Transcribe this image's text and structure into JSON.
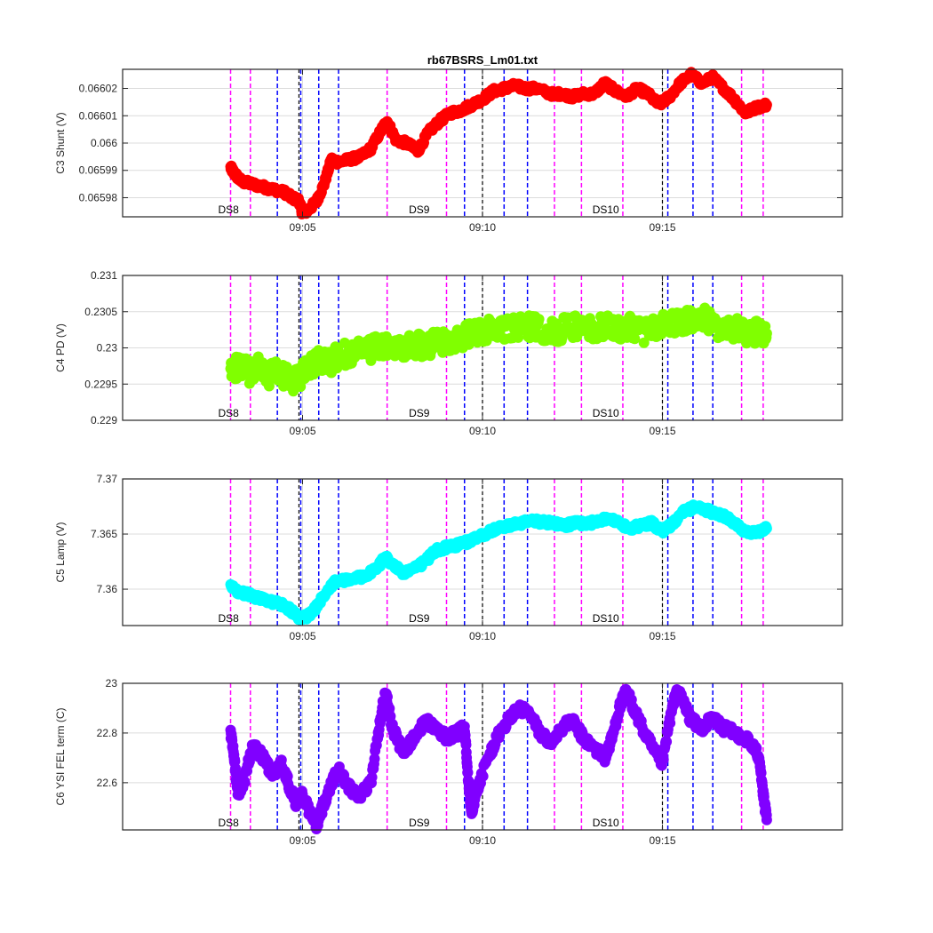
{
  "chart_data": [
    {
      "type": "scatter",
      "title": "rb67BSRS_Lm01.txt",
      "ylabel": "C3 Shunt (V)",
      "ylim": [
        0.065973,
        0.066027
      ],
      "yticks": [
        0.06598,
        0.06599,
        0.066,
        0.06601,
        0.06602
      ],
      "ytick_labels": [
        "0.06598",
        "0.06599",
        "0.066",
        "0.06601",
        "0.06602"
      ],
      "color": "#ff0000",
      "series_points": [
        [
          3.0,
          0.065991
        ],
        [
          3.1,
          0.065989
        ],
        [
          3.3,
          0.065986
        ],
        [
          3.6,
          0.065985
        ],
        [
          3.9,
          0.065984
        ],
        [
          4.2,
          0.065983
        ],
        [
          4.5,
          0.065982
        ],
        [
          4.7,
          0.06598
        ],
        [
          4.9,
          0.065979
        ],
        [
          5.0,
          0.065974
        ],
        [
          5.2,
          0.065976
        ],
        [
          5.4,
          0.065979
        ],
        [
          5.6,
          0.065985
        ],
        [
          5.8,
          0.065994
        ],
        [
          6.0,
          0.065993
        ],
        [
          6.3,
          0.065994
        ],
        [
          6.6,
          0.065995
        ],
        [
          6.9,
          0.065998
        ],
        [
          7.2,
          0.066005
        ],
        [
          7.35,
          0.066008
        ],
        [
          7.6,
          0.066001
        ],
        [
          7.9,
          0.066
        ],
        [
          8.2,
          0.065997
        ],
        [
          8.5,
          0.066004
        ],
        [
          8.8,
          0.066008
        ],
        [
          9.1,
          0.066011
        ],
        [
          9.4,
          0.066012
        ],
        [
          9.7,
          0.066014
        ],
        [
          10.0,
          0.066016
        ],
        [
          10.3,
          0.066019
        ],
        [
          10.6,
          0.06602
        ],
        [
          10.9,
          0.066021
        ],
        [
          11.2,
          0.06602
        ],
        [
          11.5,
          0.06602
        ],
        [
          11.9,
          0.066018
        ],
        [
          12.2,
          0.066018
        ],
        [
          12.5,
          0.066017
        ],
        [
          12.8,
          0.066018
        ],
        [
          13.1,
          0.066018
        ],
        [
          13.4,
          0.066022
        ],
        [
          13.7,
          0.066019
        ],
        [
          14.0,
          0.066017
        ],
        [
          14.3,
          0.06602
        ],
        [
          14.6,
          0.066018
        ],
        [
          14.9,
          0.066014
        ],
        [
          15.2,
          0.066017
        ],
        [
          15.5,
          0.066022
        ],
        [
          15.8,
          0.066025
        ],
        [
          16.1,
          0.066022
        ],
        [
          16.4,
          0.066024
        ],
        [
          16.7,
          0.06602
        ],
        [
          17.0,
          0.066016
        ],
        [
          17.3,
          0.066011
        ],
        [
          17.6,
          0.066013
        ],
        [
          17.9,
          0.066014
        ]
      ],
      "annotations": [
        "DS8",
        "DS9",
        "DS10"
      ]
    },
    {
      "type": "scatter",
      "title": "",
      "ylabel": "C4 PD (V)",
      "ylim": [
        0.229,
        0.231
      ],
      "yticks": [
        0.229,
        0.2295,
        0.23,
        0.2305,
        0.231
      ],
      "ytick_labels": [
        "0.229",
        "0.2295",
        "0.23",
        "0.2305",
        "0.231"
      ],
      "color": "#80ff00",
      "series_points": [
        [
          3.0,
          0.22965
        ],
        [
          3.2,
          0.22975
        ],
        [
          3.4,
          0.2297
        ],
        [
          3.6,
          0.22965
        ],
        [
          3.8,
          0.22975
        ],
        [
          4.0,
          0.2296
        ],
        [
          4.2,
          0.22968
        ],
        [
          4.4,
          0.22962
        ],
        [
          4.6,
          0.22958
        ],
        [
          4.8,
          0.22955
        ],
        [
          5.0,
          0.22965
        ],
        [
          5.2,
          0.22975
        ],
        [
          5.4,
          0.2298
        ],
        [
          5.6,
          0.22985
        ],
        [
          5.8,
          0.2298
        ],
        [
          6.0,
          0.2299
        ],
        [
          6.3,
          0.22992
        ],
        [
          6.6,
          0.22995
        ],
        [
          6.9,
          0.22998
        ],
        [
          7.2,
          0.23002
        ],
        [
          7.5,
          0.22998
        ],
        [
          7.8,
          0.23
        ],
        [
          8.1,
          0.23005
        ],
        [
          8.4,
          0.23002
        ],
        [
          8.7,
          0.23008
        ],
        [
          9.0,
          0.2301
        ],
        [
          9.3,
          0.23012
        ],
        [
          9.6,
          0.23018
        ],
        [
          9.9,
          0.2302
        ],
        [
          10.2,
          0.23025
        ],
        [
          10.5,
          0.23028
        ],
        [
          10.8,
          0.23025
        ],
        [
          11.1,
          0.2303
        ],
        [
          11.4,
          0.23028
        ],
        [
          11.7,
          0.23025
        ],
        [
          12.0,
          0.23022
        ],
        [
          12.3,
          0.23028
        ],
        [
          12.6,
          0.2303
        ],
        [
          12.9,
          0.23025
        ],
        [
          13.2,
          0.23028
        ],
        [
          13.5,
          0.2303
        ],
        [
          13.8,
          0.23025
        ],
        [
          14.1,
          0.23028
        ],
        [
          14.4,
          0.23022
        ],
        [
          14.7,
          0.23025
        ],
        [
          15.0,
          0.2303
        ],
        [
          15.3,
          0.23035
        ],
        [
          15.6,
          0.23038
        ],
        [
          15.9,
          0.23035
        ],
        [
          16.2,
          0.2304
        ],
        [
          16.5,
          0.2303
        ],
        [
          16.8,
          0.23028
        ],
        [
          17.1,
          0.23025
        ],
        [
          17.4,
          0.2302
        ],
        [
          17.7,
          0.23022
        ],
        [
          17.9,
          0.2302
        ]
      ],
      "annotations": [
        "DS8",
        "DS9",
        "DS10"
      ]
    },
    {
      "type": "scatter",
      "title": "",
      "ylabel": "C5 Lamp (V)",
      "ylim": [
        7.3567,
        7.37
      ],
      "yticks": [
        7.36,
        7.365,
        7.37
      ],
      "ytick_labels": [
        "7.36",
        "7.365",
        "7.37"
      ],
      "color": "#00ffff",
      "series_points": [
        [
          3.0,
          7.3603
        ],
        [
          3.2,
          7.3598
        ],
        [
          3.5,
          7.3595
        ],
        [
          3.8,
          7.3592
        ],
        [
          4.0,
          7.359
        ],
        [
          4.2,
          7.3588
        ],
        [
          4.5,
          7.3585
        ],
        [
          4.7,
          7.358
        ],
        [
          4.9,
          7.3574
        ],
        [
          5.1,
          7.3575
        ],
        [
          5.3,
          7.358
        ],
        [
          5.5,
          7.359
        ],
        [
          5.7,
          7.36
        ],
        [
          5.9,
          7.3607
        ],
        [
          6.2,
          7.3608
        ],
        [
          6.5,
          7.361
        ],
        [
          6.8,
          7.3613
        ],
        [
          7.1,
          7.362
        ],
        [
          7.3,
          7.363
        ],
        [
          7.5,
          7.3622
        ],
        [
          7.8,
          7.3615
        ],
        [
          8.1,
          7.3618
        ],
        [
          8.4,
          7.3625
        ],
        [
          8.7,
          7.3635
        ],
        [
          9.0,
          7.3638
        ],
        [
          9.3,
          7.364
        ],
        [
          9.6,
          7.3643
        ],
        [
          9.9,
          7.3648
        ],
        [
          10.2,
          7.3652
        ],
        [
          10.5,
          7.3656
        ],
        [
          10.8,
          7.3658
        ],
        [
          11.1,
          7.366
        ],
        [
          11.4,
          7.3662
        ],
        [
          11.7,
          7.3661
        ],
        [
          12.0,
          7.366
        ],
        [
          12.3,
          7.3658
        ],
        [
          12.6,
          7.366
        ],
        [
          12.9,
          7.3659
        ],
        [
          13.2,
          7.3662
        ],
        [
          13.5,
          7.3665
        ],
        [
          13.8,
          7.366
        ],
        [
          14.1,
          7.3655
        ],
        [
          14.4,
          7.3658
        ],
        [
          14.7,
          7.366
        ],
        [
          15.0,
          7.3652
        ],
        [
          15.3,
          7.366
        ],
        [
          15.6,
          7.367
        ],
        [
          15.9,
          7.3675
        ],
        [
          16.2,
          7.3672
        ],
        [
          16.5,
          7.3668
        ],
        [
          16.8,
          7.3665
        ],
        [
          17.1,
          7.3658
        ],
        [
          17.4,
          7.365
        ],
        [
          17.7,
          7.3652
        ],
        [
          17.9,
          7.3655
        ]
      ],
      "annotations": [
        "DS8",
        "DS9",
        "DS10"
      ]
    },
    {
      "type": "scatter",
      "title": "",
      "ylabel": "C6 YSI FEL term (C)",
      "ylim": [
        22.41,
        23.0
      ],
      "yticks": [
        22.6,
        22.8,
        23
      ],
      "ytick_labels": [
        "22.6",
        "22.8",
        "23"
      ],
      "color": "#8000ff",
      "series_points": [
        [
          3.0,
          22.8
        ],
        [
          3.1,
          22.7
        ],
        [
          3.2,
          22.55
        ],
        [
          3.4,
          22.62
        ],
        [
          3.6,
          22.75
        ],
        [
          3.8,
          22.72
        ],
        [
          4.0,
          22.68
        ],
        [
          4.2,
          22.62
        ],
        [
          4.4,
          22.68
        ],
        [
          4.6,
          22.6
        ],
        [
          4.8,
          22.52
        ],
        [
          5.0,
          22.55
        ],
        [
          5.2,
          22.48
        ],
        [
          5.4,
          22.43
        ],
        [
          5.6,
          22.52
        ],
        [
          5.8,
          22.6
        ],
        [
          6.0,
          22.65
        ],
        [
          6.3,
          22.58
        ],
        [
          6.6,
          22.55
        ],
        [
          6.9,
          22.6
        ],
        [
          7.1,
          22.8
        ],
        [
          7.3,
          22.97
        ],
        [
          7.5,
          22.82
        ],
        [
          7.8,
          22.72
        ],
        [
          8.1,
          22.78
        ],
        [
          8.4,
          22.85
        ],
        [
          8.7,
          22.82
        ],
        [
          9.0,
          22.78
        ],
        [
          9.3,
          22.8
        ],
        [
          9.5,
          22.82
        ],
        [
          9.6,
          22.62
        ],
        [
          9.7,
          22.48
        ],
        [
          9.8,
          22.55
        ],
        [
          10.1,
          22.68
        ],
        [
          10.4,
          22.78
        ],
        [
          10.7,
          22.85
        ],
        [
          11.0,
          22.9
        ],
        [
          11.3,
          22.88
        ],
        [
          11.6,
          22.8
        ],
        [
          11.9,
          22.76
        ],
        [
          12.2,
          22.82
        ],
        [
          12.5,
          22.85
        ],
        [
          12.8,
          22.78
        ],
        [
          13.1,
          22.74
        ],
        [
          13.4,
          22.7
        ],
        [
          13.6,
          22.78
        ],
        [
          13.8,
          22.9
        ],
        [
          14.0,
          22.97
        ],
        [
          14.2,
          22.9
        ],
        [
          14.5,
          22.8
        ],
        [
          14.8,
          22.72
        ],
        [
          15.0,
          22.68
        ],
        [
          15.2,
          22.85
        ],
        [
          15.4,
          22.97
        ],
        [
          15.6,
          22.92
        ],
        [
          15.8,
          22.85
        ],
        [
          16.1,
          22.82
        ],
        [
          16.4,
          22.86
        ],
        [
          16.7,
          22.82
        ],
        [
          17.0,
          22.8
        ],
        [
          17.3,
          22.78
        ],
        [
          17.5,
          22.75
        ],
        [
          17.7,
          22.7
        ],
        [
          17.8,
          22.55
        ],
        [
          17.9,
          22.45
        ]
      ],
      "annotations": [
        "DS8",
        "DS9",
        "DS10"
      ]
    }
  ],
  "shared_axis": {
    "xlim": [
      0.0,
      20.0
    ],
    "xticks": [
      5,
      10,
      15
    ],
    "xtick_labels": [
      "09:05",
      "09:10",
      "09:15"
    ],
    "grid": true,
    "magenta_lines": [
      3.0,
      3.55,
      7.35,
      9.0,
      12.0,
      12.75,
      13.9,
      17.2,
      17.8
    ],
    "blue_lines": [
      4.3,
      4.95,
      5.45,
      6.0,
      9.5,
      10.6,
      11.25,
      15.15,
      15.85,
      16.4
    ],
    "black_lines": [
      4.9,
      10.0,
      15.0
    ],
    "annotation_x": [
      3.0,
      8.3,
      13.4
    ],
    "magenta_color": "#ff00ff",
    "blue_color": "#0000ff"
  }
}
